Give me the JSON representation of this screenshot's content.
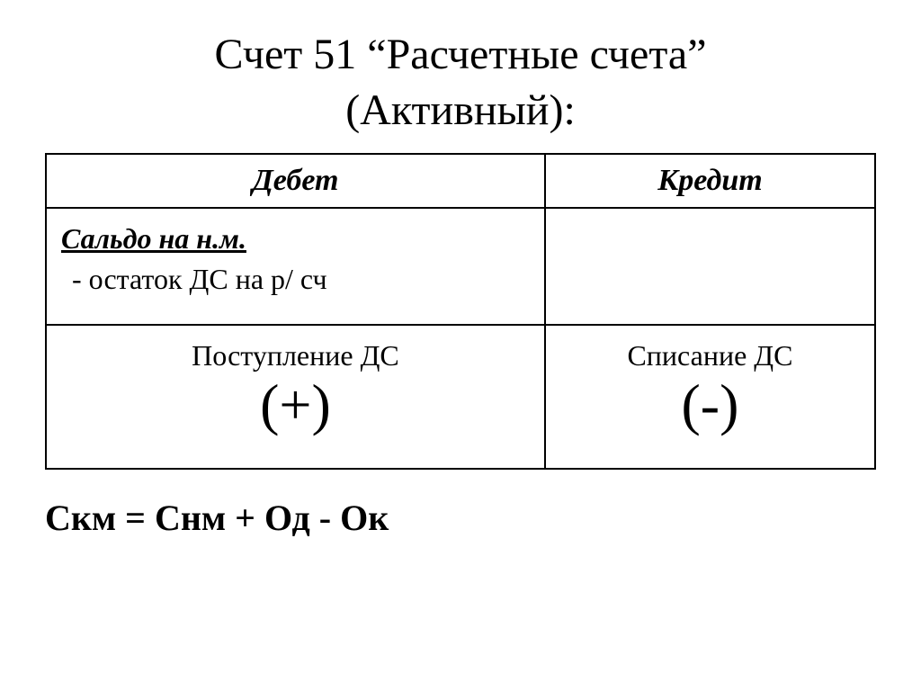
{
  "title": {
    "line1": "Счет 51 “Расчетные счета”",
    "line2": "(Активный):"
  },
  "table": {
    "columns": [
      "Дебет",
      "Кредит"
    ],
    "saldo": {
      "label": "Сальдо на н.м.",
      "description": "- остаток ДС на р/ сч"
    },
    "movements": {
      "debit": {
        "label": "Поступление ДС",
        "sign": "(+)"
      },
      "credit": {
        "label": "Списание ДС",
        "sign": "(-)"
      }
    },
    "column_widths": [
      "50%",
      "50%"
    ],
    "border_color": "#000000",
    "background_color": "#ffffff"
  },
  "formula": "Скм = Снм + Од - Ок",
  "typography": {
    "title_fontsize": 48,
    "header_fontsize": 34,
    "body_fontsize": 32,
    "sign_fontsize": 64,
    "formula_fontsize": 40,
    "font_family": "Times New Roman",
    "text_color": "#000000"
  }
}
